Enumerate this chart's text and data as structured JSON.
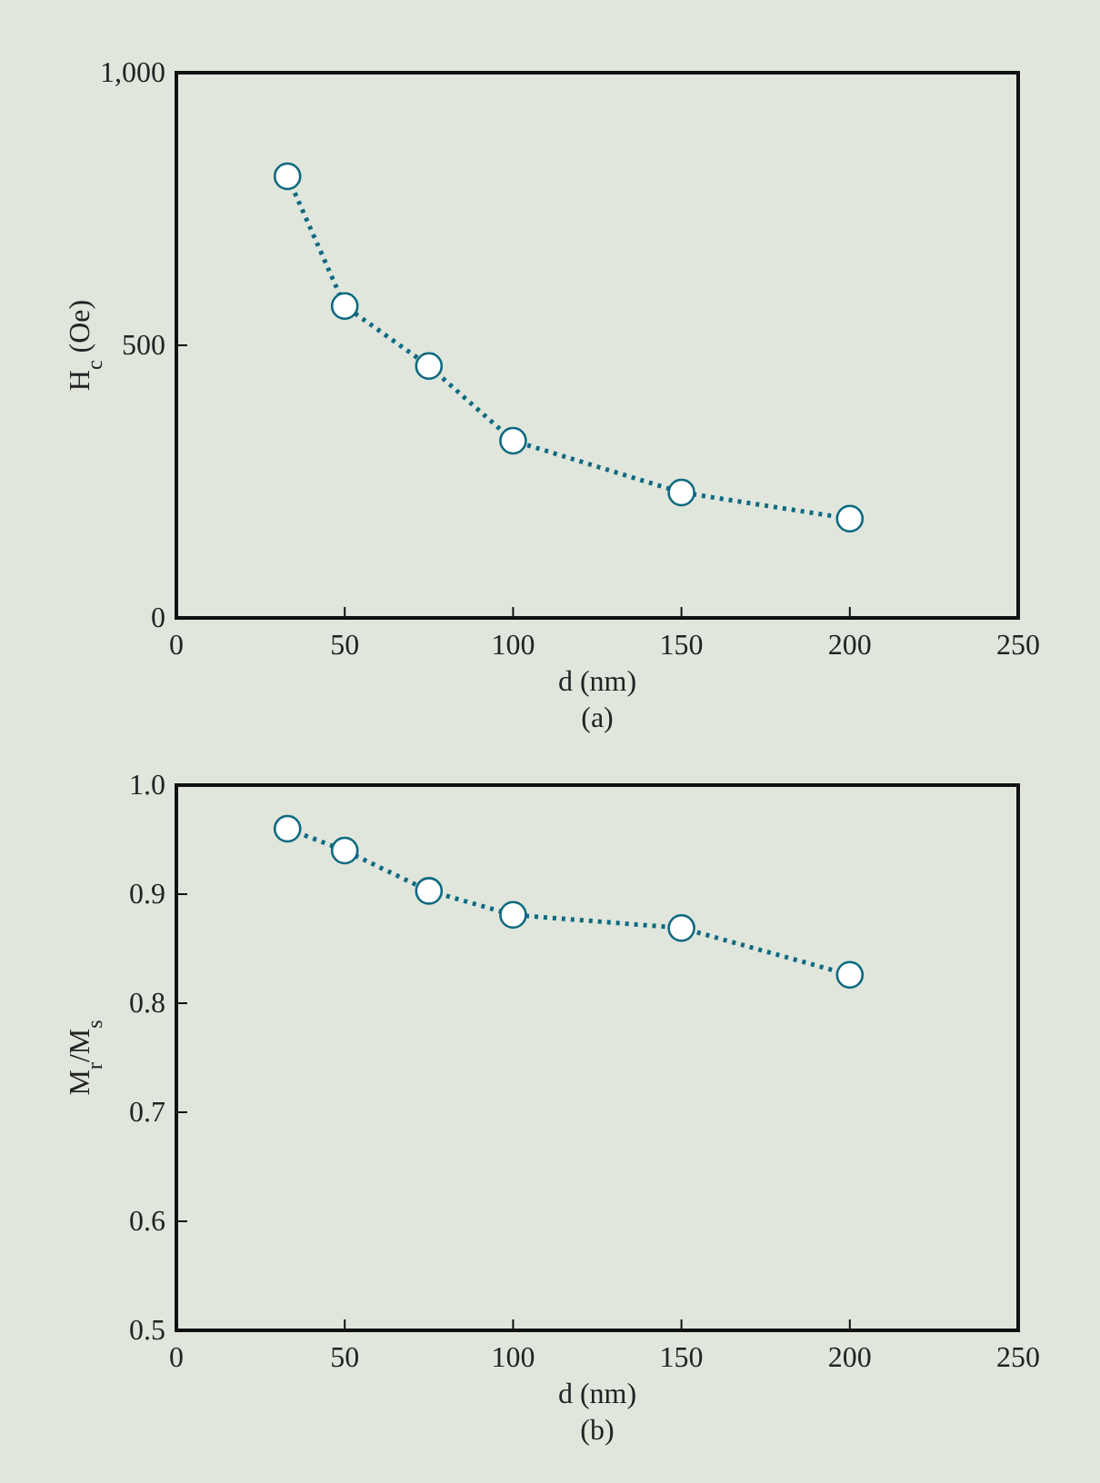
{
  "chart_data": [
    {
      "type": "line",
      "xlabel": "d (nm)",
      "ylabel": "H$_{c}$ (Oe)",
      "annotations": [
        "(a)"
      ],
      "x": [
        33,
        50,
        75,
        100,
        150,
        200
      ],
      "series": [
        {
          "color": "#0e6a80",
          "values": [
            810,
            572,
            462,
            325,
            230,
            182
          ]
        }
      ],
      "xlim": [
        0,
        250
      ],
      "xticks": [
        0,
        50,
        100,
        150,
        200,
        250
      ],
      "ylim": [
        0,
        1000
      ],
      "yticks": [
        0,
        {
          "value": 500,
          "label": "500"
        },
        {
          "value": 1000,
          "label": "1,000"
        }
      ],
      "grid": false,
      "marker": "circle",
      "line_style": "dotted"
    },
    {
      "type": "line",
      "xlabel": "d (nm)",
      "ylabel": "M$_{r}$/M$_{s}$",
      "annotations": [
        "(b)"
      ],
      "x": [
        33,
        50,
        75,
        100,
        150,
        200
      ],
      "series": [
        {
          "color": "#0e6a80",
          "values": [
            0.96,
            0.94,
            0.903,
            0.881,
            0.869,
            0.826
          ]
        }
      ],
      "xlim": [
        0,
        250
      ],
      "xticks": [
        0,
        50,
        100,
        150,
        200,
        250
      ],
      "ylim": [
        0.5,
        1.0
      ],
      "yticks": [
        0.5,
        0.6,
        0.7,
        0.8,
        0.9,
        {
          "value": 1.0,
          "label": "1.0"
        }
      ],
      "grid": false,
      "marker": "circle",
      "line_style": "dotted"
    }
  ]
}
